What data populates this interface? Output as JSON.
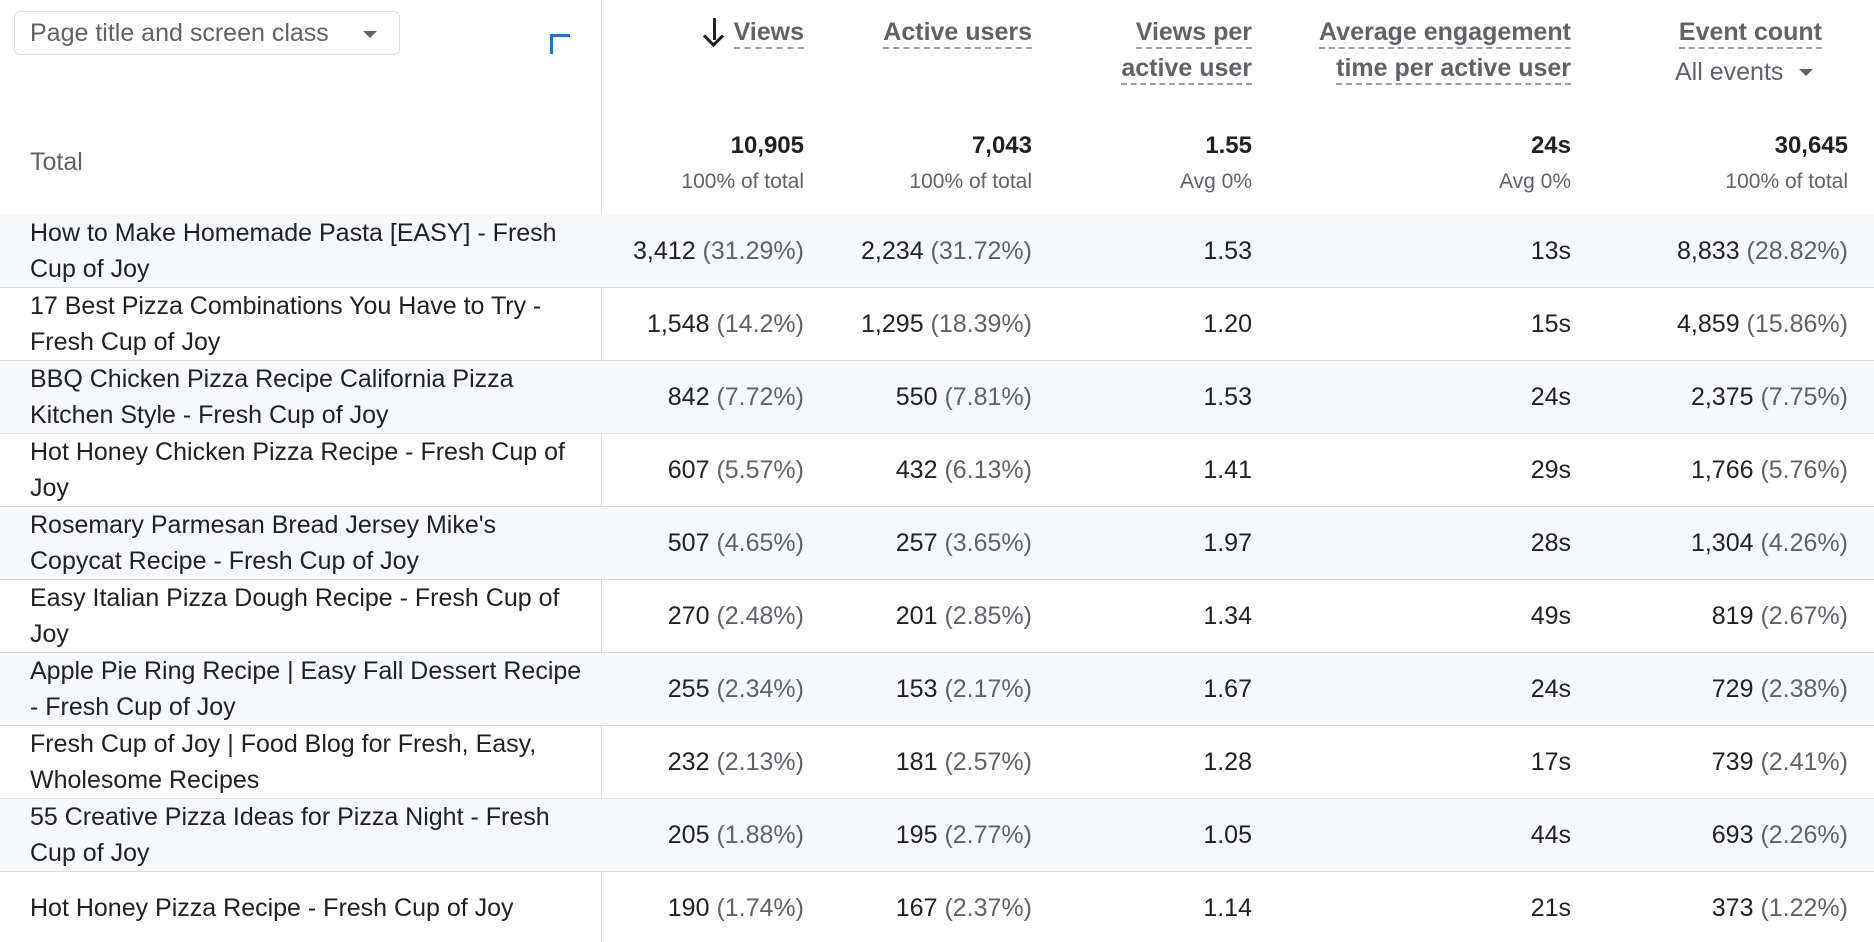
{
  "toolbar": {
    "dimension_label": "Page title and screen class"
  },
  "totals_row_label": "Total",
  "columns": {
    "views": {
      "line1": "Views"
    },
    "active_users": {
      "line1": "Active users"
    },
    "views_per_user": {
      "line1": "Views per",
      "line2": "active user"
    },
    "avg_engagement": {
      "line1": "Average engagement",
      "line2": "time per active user"
    },
    "event_count": {
      "line1": "Event count",
      "filter": "All events"
    }
  },
  "totals": {
    "views": {
      "value": "10,905",
      "sub": "100% of total"
    },
    "active_users": {
      "value": "7,043",
      "sub": "100% of total"
    },
    "views_per_user": {
      "value": "1.55",
      "sub": "Avg 0%"
    },
    "avg_engagement": {
      "value": "24s",
      "sub": "Avg 0%"
    },
    "event_count": {
      "value": "30,645",
      "sub": "100% of total"
    }
  },
  "rows": [
    {
      "title": "How to Make Homemade Pasta [EASY] - Fresh Cup of Joy",
      "views": "3,412",
      "views_pct": "(31.29%)",
      "users": "2,234",
      "users_pct": "(31.72%)",
      "vpu": "1.53",
      "eng": "13s",
      "events": "8,833",
      "events_pct": "(28.82%)"
    },
    {
      "title": "17 Best Pizza Combinations You Have to Try - Fresh Cup of Joy",
      "views": "1,548",
      "views_pct": "(14.2%)",
      "users": "1,295",
      "users_pct": "(18.39%)",
      "vpu": "1.20",
      "eng": "15s",
      "events": "4,859",
      "events_pct": "(15.86%)"
    },
    {
      "title": "BBQ Chicken Pizza Recipe California Pizza Kitchen Style - Fresh Cup of Joy",
      "views": "842",
      "views_pct": "(7.72%)",
      "users": "550",
      "users_pct": "(7.81%)",
      "vpu": "1.53",
      "eng": "24s",
      "events": "2,375",
      "events_pct": "(7.75%)"
    },
    {
      "title": "Hot Honey Chicken Pizza Recipe - Fresh Cup of Joy",
      "views": "607",
      "views_pct": "(5.57%)",
      "users": "432",
      "users_pct": "(6.13%)",
      "vpu": "1.41",
      "eng": "29s",
      "events": "1,766",
      "events_pct": "(5.76%)"
    },
    {
      "title": "Rosemary Parmesan Bread Jersey Mike's Copycat Recipe - Fresh Cup of Joy",
      "views": "507",
      "views_pct": "(4.65%)",
      "users": "257",
      "users_pct": "(3.65%)",
      "vpu": "1.97",
      "eng": "28s",
      "events": "1,304",
      "events_pct": "(4.26%)"
    },
    {
      "title": "Easy Italian Pizza Dough Recipe - Fresh Cup of Joy",
      "views": "270",
      "views_pct": "(2.48%)",
      "users": "201",
      "users_pct": "(2.85%)",
      "vpu": "1.34",
      "eng": "49s",
      "events": "819",
      "events_pct": "(2.67%)"
    },
    {
      "title": "Apple Pie Ring Recipe | Easy Fall Dessert Recipe - Fresh Cup of Joy",
      "views": "255",
      "views_pct": "(2.34%)",
      "users": "153",
      "users_pct": "(2.17%)",
      "vpu": "1.67",
      "eng": "24s",
      "events": "729",
      "events_pct": "(2.38%)"
    },
    {
      "title": "Fresh Cup of Joy | Food Blog for Fresh, Easy, Wholesome Recipes",
      "views": "232",
      "views_pct": "(2.13%)",
      "users": "181",
      "users_pct": "(2.57%)",
      "vpu": "1.28",
      "eng": "17s",
      "events": "739",
      "events_pct": "(2.41%)"
    },
    {
      "title": "55 Creative Pizza Ideas for Pizza Night - Fresh Cup of Joy",
      "views": "205",
      "views_pct": "(1.88%)",
      "users": "195",
      "users_pct": "(2.77%)",
      "vpu": "1.05",
      "eng": "44s",
      "events": "693",
      "events_pct": "(2.26%)"
    },
    {
      "title": "Hot Honey Pizza Recipe - Fresh Cup of Joy",
      "views": "190",
      "views_pct": "(1.74%)",
      "users": "167",
      "users_pct": "(2.37%)",
      "vpu": "1.14",
      "eng": "21s",
      "events": "373",
      "events_pct": "(1.22%)"
    }
  ],
  "colors": {
    "accent": "#1a73e8",
    "row_shade": "#f8f9fa",
    "divider": "#dadce0",
    "muted_text": "#5f6368"
  },
  "icons": {
    "dimension_dropdown": "caret-down-icon",
    "add_dimension": "plus-icon",
    "sort": "arrow-down-icon",
    "event_filter": "caret-down-icon"
  }
}
